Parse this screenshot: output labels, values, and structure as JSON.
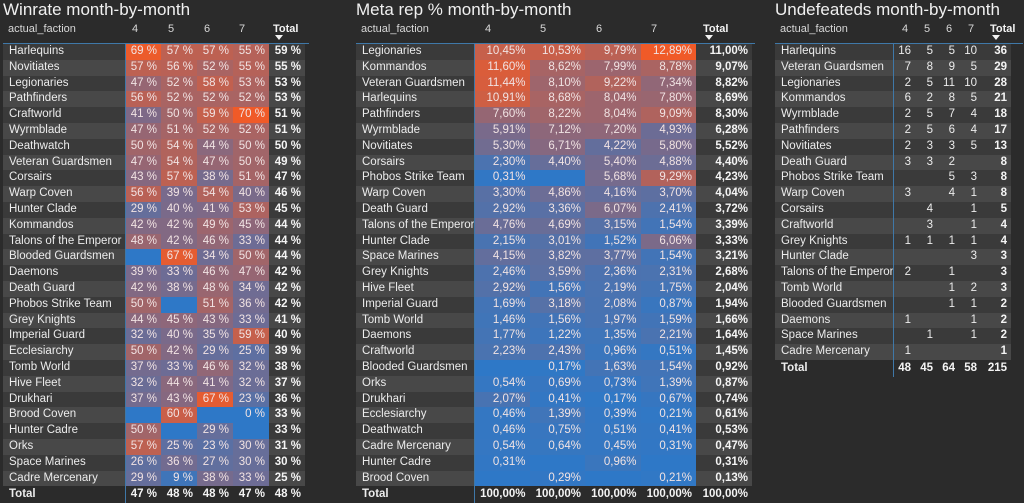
{
  "winrate": {
    "title": "Winrate month-by-month",
    "columns": [
      "actual_faction",
      "4",
      "5",
      "6",
      "7",
      "Total"
    ],
    "rows": [
      {
        "faction": "Harlequins",
        "values": [
          "69 %",
          "57 %",
          "57 %",
          "55 %"
        ],
        "total": "59 %"
      },
      {
        "faction": "Novitiates",
        "values": [
          "57 %",
          "56 %",
          "52 %",
          "55 %"
        ],
        "total": "55 %"
      },
      {
        "faction": "Legionaries",
        "values": [
          "47 %",
          "52 %",
          "58 %",
          "53 %"
        ],
        "total": "53 %"
      },
      {
        "faction": "Pathfinders",
        "values": [
          "56 %",
          "52 %",
          "52 %",
          "52 %"
        ],
        "total": "53 %"
      },
      {
        "faction": "Craftworld",
        "values": [
          "41 %",
          "50 %",
          "59 %",
          "70 %"
        ],
        "total": "51 %"
      },
      {
        "faction": "Wyrmblade",
        "values": [
          "47 %",
          "51 %",
          "52 %",
          "52 %"
        ],
        "total": "51 %"
      },
      {
        "faction": "Deathwatch",
        "values": [
          "50 %",
          "54 %",
          "44 %",
          "50 %"
        ],
        "total": "50 %"
      },
      {
        "faction": "Veteran Guardsmen",
        "values": [
          "47 %",
          "54 %",
          "47 %",
          "50 %"
        ],
        "total": "49 %"
      },
      {
        "faction": "Corsairs",
        "values": [
          "43 %",
          "57 %",
          "38 %",
          "51 %"
        ],
        "total": "47 %"
      },
      {
        "faction": "Warp Coven",
        "values": [
          "56 %",
          "39 %",
          "54 %",
          "40 %"
        ],
        "total": "46 %"
      },
      {
        "faction": "Hunter Clade",
        "values": [
          "29 %",
          "40 %",
          "41 %",
          "53 %"
        ],
        "total": "45 %"
      },
      {
        "faction": "Kommandos",
        "values": [
          "42 %",
          "42 %",
          "49 %",
          "45 %"
        ],
        "total": "44 %"
      },
      {
        "faction": "Talons of the Emperor",
        "values": [
          "48 %",
          "42 %",
          "46 %",
          "33 %"
        ],
        "total": "44 %"
      },
      {
        "faction": "Blooded Guardsmen",
        "values": [
          "",
          "67 %",
          "34 %",
          "50 %"
        ],
        "total": "44 %"
      },
      {
        "faction": "Daemons",
        "values": [
          "39 %",
          "33 %",
          "46 %",
          "47 %"
        ],
        "total": "42 %"
      },
      {
        "faction": "Death Guard",
        "values": [
          "42 %",
          "38 %",
          "48 %",
          "34 %"
        ],
        "total": "42 %"
      },
      {
        "faction": "Phobos Strike Team",
        "values": [
          "50 %",
          "",
          "51 %",
          "36 %"
        ],
        "total": "42 %"
      },
      {
        "faction": "Grey Knights",
        "values": [
          "44 %",
          "45 %",
          "43 %",
          "33 %"
        ],
        "total": "41 %"
      },
      {
        "faction": "Imperial Guard",
        "values": [
          "32 %",
          "40 %",
          "35 %",
          "59 %"
        ],
        "total": "40 %"
      },
      {
        "faction": "Ecclesiarchy",
        "values": [
          "50 %",
          "42 %",
          "29 %",
          "25 %"
        ],
        "total": "39 %"
      },
      {
        "faction": "Tomb World",
        "values": [
          "37 %",
          "33 %",
          "46 %",
          "32 %"
        ],
        "total": "38 %"
      },
      {
        "faction": "Hive Fleet",
        "values": [
          "32 %",
          "44 %",
          "41 %",
          "32 %"
        ],
        "total": "37 %"
      },
      {
        "faction": "Drukhari",
        "values": [
          "37 %",
          "43 %",
          "67 %",
          "23 %"
        ],
        "total": "36 %"
      },
      {
        "faction": "Brood Coven",
        "values": [
          "",
          "60 %",
          "",
          "0 %"
        ],
        "total": "33 %"
      },
      {
        "faction": "Hunter Cadre",
        "values": [
          "50 %",
          "",
          "29 %",
          ""
        ],
        "total": "33 %"
      },
      {
        "faction": "Orks",
        "values": [
          "57 %",
          "25 %",
          "23 %",
          "30 %"
        ],
        "total": "31 %"
      },
      {
        "faction": "Space Marines",
        "values": [
          "26 %",
          "36 %",
          "27 %",
          "30 %"
        ],
        "total": "30 %"
      },
      {
        "faction": "Cadre Mercenary",
        "values": [
          "29 %",
          "9 %",
          "38 %",
          "33 %"
        ],
        "total": "25 %"
      }
    ],
    "total_row": {
      "label": "Total",
      "values": [
        "47 %",
        "48 %",
        "48 %",
        "47 %"
      ],
      "total": "48 %"
    }
  },
  "meta": {
    "title": "Meta rep % month-by-month",
    "columns": [
      "actual_faction",
      "4",
      "5",
      "6",
      "7",
      "Total"
    ],
    "rows": [
      {
        "faction": "Legionaries",
        "values": [
          "10,45%",
          "10,53%",
          "9,79%",
          "12,89%"
        ],
        "total": "11,00%"
      },
      {
        "faction": "Kommandos",
        "values": [
          "11,60%",
          "8,62%",
          "7,99%",
          "8,78%"
        ],
        "total": "9,07%"
      },
      {
        "faction": "Veteran Guardsmen",
        "values": [
          "11,44%",
          "8,10%",
          "9,22%",
          "7,34%"
        ],
        "total": "8,82%"
      },
      {
        "faction": "Harlequins",
        "values": [
          "10,91%",
          "8,68%",
          "8,04%",
          "7,80%"
        ],
        "total": "8,69%"
      },
      {
        "faction": "Pathfinders",
        "values": [
          "7,60%",
          "8,22%",
          "8,04%",
          "9,09%"
        ],
        "total": "8,30%"
      },
      {
        "faction": "Wyrmblade",
        "values": [
          "5,91%",
          "7,12%",
          "7,20%",
          "4,93%"
        ],
        "total": "6,28%"
      },
      {
        "faction": "Novitiates",
        "values": [
          "5,30%",
          "6,71%",
          "4,22%",
          "5,80%"
        ],
        "total": "5,52%"
      },
      {
        "faction": "Corsairs",
        "values": [
          "2,30%",
          "4,40%",
          "5,40%",
          "4,88%"
        ],
        "total": "4,40%"
      },
      {
        "faction": "Phobos Strike Team",
        "values": [
          "0,31%",
          "",
          "5,68%",
          "9,29%"
        ],
        "total": "4,23%"
      },
      {
        "faction": "Warp Coven",
        "values": [
          "3,30%",
          "4,86%",
          "4,16%",
          "3,70%"
        ],
        "total": "4,04%"
      },
      {
        "faction": "Death Guard",
        "values": [
          "2,92%",
          "3,36%",
          "6,07%",
          "2,41%"
        ],
        "total": "3,72%"
      },
      {
        "faction": "Talons of the Emperor",
        "values": [
          "4,76%",
          "4,69%",
          "3,15%",
          "1,54%"
        ],
        "total": "3,39%"
      },
      {
        "faction": "Hunter Clade",
        "values": [
          "2,15%",
          "3,01%",
          "1,52%",
          "6,06%"
        ],
        "total": "3,33%"
      },
      {
        "faction": "Space Marines",
        "values": [
          "4,15%",
          "3,82%",
          "3,77%",
          "1,54%"
        ],
        "total": "3,21%"
      },
      {
        "faction": "Grey Knights",
        "values": [
          "2,46%",
          "3,59%",
          "2,36%",
          "2,31%"
        ],
        "total": "2,68%"
      },
      {
        "faction": "Hive Fleet",
        "values": [
          "2,92%",
          "1,56%",
          "2,19%",
          "1,75%"
        ],
        "total": "2,04%"
      },
      {
        "faction": "Imperial Guard",
        "values": [
          "1,69%",
          "3,18%",
          "2,08%",
          "0,87%"
        ],
        "total": "1,94%"
      },
      {
        "faction": "Tomb World",
        "values": [
          "1,46%",
          "1,56%",
          "1,97%",
          "1,59%"
        ],
        "total": "1,66%"
      },
      {
        "faction": "Daemons",
        "values": [
          "1,77%",
          "1,22%",
          "1,35%",
          "2,21%"
        ],
        "total": "1,64%"
      },
      {
        "faction": "Craftworld",
        "values": [
          "2,23%",
          "2,43%",
          "0,96%",
          "0,51%"
        ],
        "total": "1,45%"
      },
      {
        "faction": "Blooded Guardsmen",
        "values": [
          "",
          "0,17%",
          "1,63%",
          "1,54%"
        ],
        "total": "0,92%"
      },
      {
        "faction": "Orks",
        "values": [
          "0,54%",
          "0,69%",
          "0,73%",
          "1,39%"
        ],
        "total": "0,87%"
      },
      {
        "faction": "Drukhari",
        "values": [
          "2,07%",
          "0,41%",
          "0,17%",
          "0,67%"
        ],
        "total": "0,74%"
      },
      {
        "faction": "Ecclesiarchy",
        "values": [
          "0,46%",
          "1,39%",
          "0,39%",
          "0,21%"
        ],
        "total": "0,61%"
      },
      {
        "faction": "Deathwatch",
        "values": [
          "0,46%",
          "0,75%",
          "0,51%",
          "0,41%"
        ],
        "total": "0,53%"
      },
      {
        "faction": "Cadre Mercenary",
        "values": [
          "0,54%",
          "0,64%",
          "0,45%",
          "0,31%"
        ],
        "total": "0,47%"
      },
      {
        "faction": "Hunter Cadre",
        "values": [
          "0,31%",
          "",
          "0,96%",
          ""
        ],
        "total": "0,31%"
      },
      {
        "faction": "Brood Coven",
        "values": [
          "",
          "0,29%",
          "",
          "0,21%"
        ],
        "total": "0,13%"
      }
    ],
    "total_row": {
      "label": "Total",
      "values": [
        "100,00%",
        "100,00%",
        "100,00%",
        "100,00%"
      ],
      "total": "100,00%"
    }
  },
  "undefeated": {
    "title": "Undefeateds month-by-month",
    "columns": [
      "actual_faction",
      "4",
      "5",
      "6",
      "7",
      "Total"
    ],
    "rows": [
      {
        "faction": "Harlequins",
        "values": [
          "16",
          "5",
          "5",
          "10"
        ],
        "total": "36"
      },
      {
        "faction": "Veteran Guardsmen",
        "values": [
          "7",
          "8",
          "9",
          "5"
        ],
        "total": "29"
      },
      {
        "faction": "Legionaries",
        "values": [
          "2",
          "5",
          "11",
          "10"
        ],
        "total": "28"
      },
      {
        "faction": "Kommandos",
        "values": [
          "6",
          "2",
          "8",
          "5"
        ],
        "total": "21"
      },
      {
        "faction": "Wyrmblade",
        "values": [
          "2",
          "5",
          "7",
          "4"
        ],
        "total": "18"
      },
      {
        "faction": "Pathfinders",
        "values": [
          "2",
          "5",
          "6",
          "4"
        ],
        "total": "17"
      },
      {
        "faction": "Novitiates",
        "values": [
          "2",
          "3",
          "3",
          "5"
        ],
        "total": "13"
      },
      {
        "faction": "Death Guard",
        "values": [
          "3",
          "3",
          "2",
          ""
        ],
        "total": "8"
      },
      {
        "faction": "Phobos Strike Team",
        "values": [
          "",
          "",
          "5",
          "3"
        ],
        "total": "8"
      },
      {
        "faction": "Warp Coven",
        "values": [
          "3",
          "",
          "4",
          "1"
        ],
        "total": "8"
      },
      {
        "faction": "Corsairs",
        "values": [
          "",
          "4",
          "",
          "1"
        ],
        "total": "5"
      },
      {
        "faction": "Craftworld",
        "values": [
          "",
          "3",
          "",
          "1"
        ],
        "total": "4"
      },
      {
        "faction": "Grey Knights",
        "values": [
          "1",
          "1",
          "1",
          "1"
        ],
        "total": "4"
      },
      {
        "faction": "Hunter Clade",
        "values": [
          "",
          "",
          "",
          "3"
        ],
        "total": "3"
      },
      {
        "faction": "Talons of the Emperor",
        "values": [
          "2",
          "",
          "1",
          ""
        ],
        "total": "3"
      },
      {
        "faction": "Tomb World",
        "values": [
          "",
          "",
          "1",
          "2"
        ],
        "total": "3"
      },
      {
        "faction": "Blooded Guardsmen",
        "values": [
          "",
          "",
          "1",
          "1"
        ],
        "total": "2"
      },
      {
        "faction": "Daemons",
        "values": [
          "1",
          "",
          "",
          "1"
        ],
        "total": "2"
      },
      {
        "faction": "Space Marines",
        "values": [
          "",
          "1",
          "",
          "1"
        ],
        "total": "2"
      },
      {
        "faction": "Cadre Mercenary",
        "values": [
          "1",
          "",
          "",
          ""
        ],
        "total": "1"
      }
    ],
    "total_row": {
      "label": "Total",
      "values": [
        "48",
        "45",
        "64",
        "58"
      ],
      "total": "215"
    }
  },
  "colors": {
    "low": "#2e78c7",
    "mid": "#7a6a8a",
    "high": "#f05a28",
    "header_line": "#3f78a8",
    "background": "#2b2b2b"
  }
}
